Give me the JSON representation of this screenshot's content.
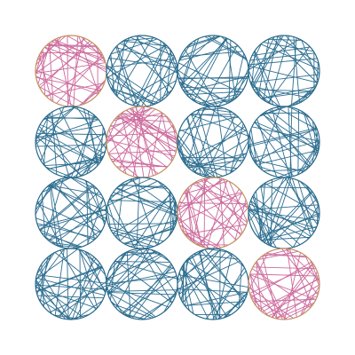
{
  "grid": {
    "rows": 4,
    "columns": 4,
    "highlighted_cells": [
      [
        0,
        0
      ],
      [
        1,
        1
      ],
      [
        2,
        2
      ],
      [
        3,
        3
      ]
    ]
  },
  "colors": {
    "background": "#ffffff",
    "normal_lines": "#2e6f91",
    "normal_rim": "#2a6a8a",
    "highlight_lines": "#cc6a9c",
    "highlight_rim": "#c49060"
  },
  "chords_per_circle": 40
}
